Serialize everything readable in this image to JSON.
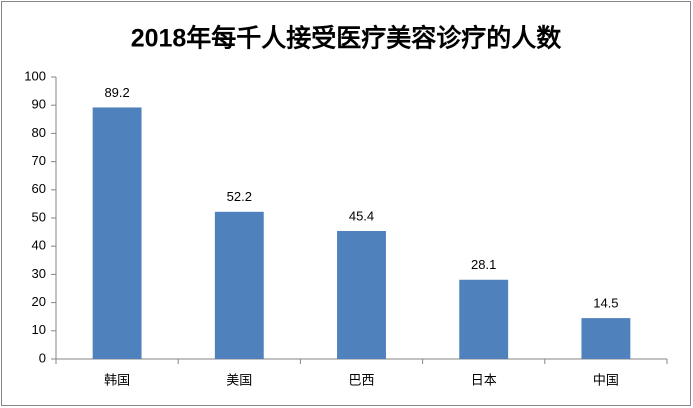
{
  "chart_data": {
    "type": "bar",
    "title": "2018年每千人接受医疗美容诊疗的人数",
    "categories": [
      "韩国",
      "美国",
      "巴西",
      "日本",
      "中国"
    ],
    "values": [
      89.2,
      52.2,
      45.4,
      28.1,
      14.5
    ],
    "color": "#4f81bd",
    "ylim": [
      0,
      100
    ],
    "yticks": [
      0,
      10,
      20,
      30,
      40,
      50,
      60,
      70,
      80,
      90,
      100
    ],
    "grid": false
  }
}
